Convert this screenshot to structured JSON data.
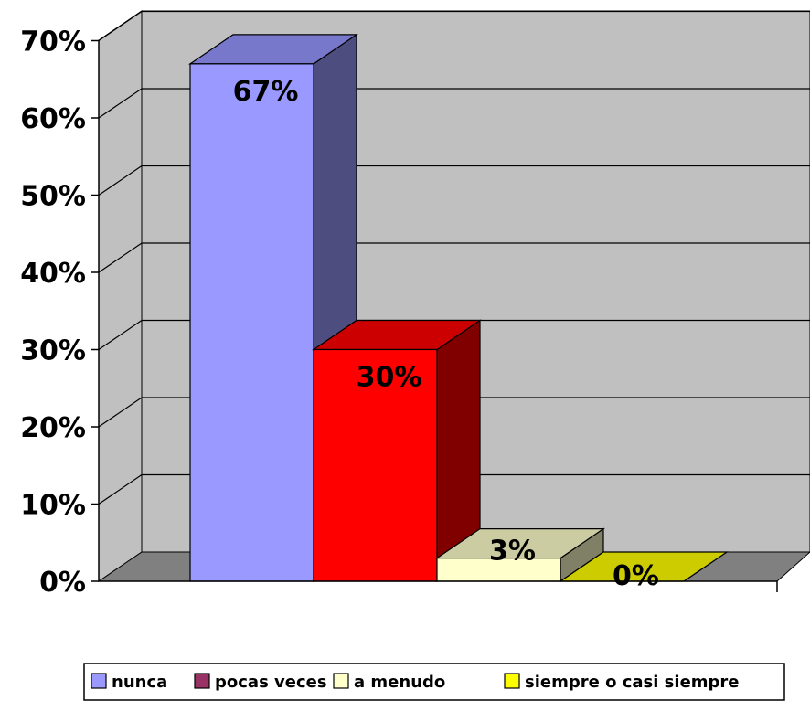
{
  "chart_data": {
    "type": "bar",
    "style": "3d",
    "title": "",
    "xlabel": "",
    "ylabel": "",
    "ylim": [
      0,
      70
    ],
    "ytick_step": 10,
    "y_format": "percent",
    "grid": true,
    "legend_position": "bottom",
    "categories": [
      "nunca",
      "pocas veces",
      "a menudo",
      "siempre o casi siempre"
    ],
    "values": [
      67,
      30,
      3,
      0
    ],
    "data_labels": [
      "67%",
      "30%",
      "3%",
      "0%"
    ],
    "yticks": [
      "0%",
      "10%",
      "20%",
      "30%",
      "40%",
      "50%",
      "60%",
      "70%"
    ],
    "colors": {
      "front": [
        "#9999ff",
        "#ff0000",
        "#ffffcc",
        "#cccc00"
      ],
      "top": [
        "#7777cc",
        "#cc0000",
        "#cccca3",
        "#cccc00"
      ],
      "side": [
        "#4d4d80",
        "#800000",
        "#808066",
        "#808000"
      ],
      "legend": [
        "#9999ff",
        "#993366",
        "#ffffcc",
        "#ffff00"
      ],
      "wall": "#c0c0c0",
      "floor": "#808080"
    }
  }
}
